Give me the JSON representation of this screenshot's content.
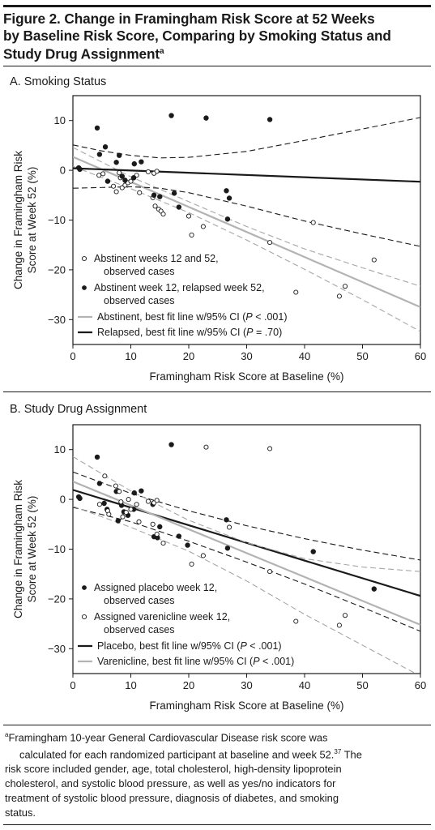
{
  "figure": {
    "title_lines": [
      "Figure 2. Change in Framingham Risk Score at 52 Weeks",
      "by Baseline Risk Score, Comparing by Smoking Status and",
      "Study Drug Assignment"
    ],
    "title_sup": "a"
  },
  "footnote": {
    "marker": "a",
    "lines": [
      "Framingham 10-year General Cardiovascular Disease risk score was",
      "calculated for each randomized participant at baseline and week 52.",
      "risk score included gender, age, total cholesterol, high-density lipoprotein",
      "cholesterol, and systolic blood pressure, as well as yes/no indicators for",
      "treatment of systolic blood pressure, diagnosis of diabetes, and smoking",
      "status."
    ],
    "ref_sup": "37",
    "line2_tail": " The"
  },
  "colors": {
    "black": "#1a1a1a",
    "gray": "#b3b3b3",
    "dash_gray": "#a6a6a6"
  },
  "chart_data": [
    {
      "type": "scatter",
      "panel_title": "A. Smoking Status",
      "xlabel": "Framingham Risk Score at Baseline (%)",
      "ylabel_lines": [
        "Change in Framingham Risk",
        "Score at Week 52 (%)"
      ],
      "xlim": [
        0,
        60
      ],
      "ylim": [
        -35,
        15
      ],
      "xticks": [
        0,
        10,
        20,
        30,
        40,
        50,
        60
      ],
      "yticks": [
        -30,
        -20,
        -10,
        0,
        10
      ],
      "ytick_labels": [
        "−30",
        "−20",
        "−10",
        "0",
        "10"
      ],
      "series": [
        {
          "name": "Abstinent weeks 12 and 52, observed cases",
          "marker": "open",
          "points": [
            [
              4.5,
              -1
            ],
            [
              5.2,
              -0.7
            ],
            [
              6,
              -2.2
            ],
            [
              7,
              -3.2
            ],
            [
              7.5,
              -4.3
            ],
            [
              8,
              -0.5
            ],
            [
              8.2,
              -1.5
            ],
            [
              8.5,
              -3.5
            ],
            [
              9,
              -3
            ],
            [
              9.5,
              -2.5
            ],
            [
              10,
              -2.2
            ],
            [
              10.5,
              -1.5
            ],
            [
              11,
              -1
            ],
            [
              11.5,
              -4.5
            ],
            [
              13,
              -0.3
            ],
            [
              14,
              -0.6
            ],
            [
              14.5,
              -0.2
            ],
            [
              13.8,
              -5.5
            ],
            [
              14.2,
              -7.2
            ],
            [
              14.8,
              -7.8
            ],
            [
              15.2,
              -8.2
            ],
            [
              15.6,
              -8.8
            ],
            [
              20,
              -9.2
            ],
            [
              20.5,
              -13
            ],
            [
              22.5,
              -11.3
            ],
            [
              34,
              -14.5
            ],
            [
              38.5,
              -24.5
            ],
            [
              41.5,
              -10.5
            ],
            [
              46,
              -25.3
            ],
            [
              47,
              -23.3
            ],
            [
              52,
              -18
            ]
          ]
        },
        {
          "name": "Abstinent week 12, relapsed week 52, observed cases",
          "marker": "filled",
          "points": [
            [
              1,
              0.5
            ],
            [
              1.2,
              0.2
            ],
            [
              4.2,
              8.5
            ],
            [
              4.6,
              3.2
            ],
            [
              5.6,
              4.7
            ],
            [
              6,
              -2.2
            ],
            [
              7.5,
              1.6
            ],
            [
              8,
              3
            ],
            [
              8.5,
              -1.2
            ],
            [
              9,
              -2
            ],
            [
              10.5,
              -1.5
            ],
            [
              10.6,
              1.3
            ],
            [
              11.8,
              1.7
            ],
            [
              14,
              -5
            ],
            [
              15,
              -5.3
            ],
            [
              17,
              11
            ],
            [
              17.5,
              -4.6
            ],
            [
              18.3,
              -7.4
            ],
            [
              23,
              10.5
            ],
            [
              26.5,
              -4.1
            ],
            [
              26.7,
              -9.8
            ],
            [
              27,
              -5.6
            ],
            [
              34,
              10.2
            ]
          ]
        }
      ],
      "fit_lines": [
        {
          "name": "Abstinent, best fit line w/95% CI",
          "p_label": "P",
          "p_value": "< .001",
          "color": "gray",
          "fit": [
            [
              0,
              2.7
            ],
            [
              60,
              -27.5
            ]
          ],
          "ci_upper": [
            [
              0,
              4.6
            ],
            [
              10,
              -1.3
            ],
            [
              20,
              -6.3
            ],
            [
              30,
              -11.3
            ],
            [
              40,
              -15.8
            ],
            [
              50,
              -19.6
            ],
            [
              60,
              -23.3
            ]
          ],
          "ci_lower": [
            [
              0,
              0.8
            ],
            [
              10,
              -3.7
            ],
            [
              20,
              -8.5
            ],
            [
              30,
              -14.0
            ],
            [
              40,
              -19.9
            ],
            [
              50,
              -26.0
            ],
            [
              60,
              -32.4
            ]
          ]
        },
        {
          "name": "Relapsed, best fit line w/95% CI",
          "p_label": "P",
          "p_value": "= .70",
          "color": "black",
          "fit": [
            [
              0,
              0.4
            ],
            [
              60,
              -2.3
            ]
          ],
          "ci_upper": [
            [
              0,
              5.1
            ],
            [
              5,
              3.9
            ],
            [
              10,
              3
            ],
            [
              15,
              2.5
            ],
            [
              20,
              2.6
            ],
            [
              30,
              3.8
            ],
            [
              40,
              6
            ],
            [
              50,
              8.3
            ],
            [
              60,
              10.6
            ]
          ],
          "ci_lower": [
            [
              0,
              -3.6
            ],
            [
              10,
              -3.3
            ],
            [
              15,
              -3.6
            ],
            [
              20,
              -4.5
            ],
            [
              30,
              -7.2
            ],
            [
              40,
              -10.2
            ],
            [
              50,
              -12.8
            ],
            [
              60,
              -15.3
            ]
          ]
        }
      ],
      "legend_placement": "bottom-left"
    },
    {
      "type": "scatter",
      "panel_title": "B. Study Drug Assignment",
      "xlabel": "Framingham Risk Score at Baseline (%)",
      "ylabel_lines": [
        "Change in Framingham Risk",
        "Score at Week 52 (%)"
      ],
      "xlim": [
        0,
        60
      ],
      "ylim": [
        -35,
        15
      ],
      "xticks": [
        0,
        10,
        20,
        30,
        40,
        50,
        60
      ],
      "yticks": [
        -30,
        -20,
        -10,
        0,
        10
      ],
      "ytick_labels": [
        "−30",
        "−20",
        "−10",
        "0",
        "10"
      ],
      "series": [
        {
          "name": "Assigned placebo week 12, observed cases",
          "marker": "filled",
          "points": [
            [
              1,
              0.5
            ],
            [
              1.2,
              0.2
            ],
            [
              4.2,
              8.5
            ],
            [
              4.6,
              3.2
            ],
            [
              5.4,
              -0.8
            ],
            [
              5.9,
              -2
            ],
            [
              7.5,
              1.6
            ],
            [
              7.8,
              -4.3
            ],
            [
              8.4,
              -1.2
            ],
            [
              8.8,
              -2.5
            ],
            [
              9.5,
              -3.2
            ],
            [
              10.5,
              -2
            ],
            [
              10.6,
              1.3
            ],
            [
              11.8,
              1.7
            ],
            [
              13.8,
              -1
            ],
            [
              14,
              -7.5
            ],
            [
              14.6,
              -7.7
            ],
            [
              15,
              -5.5
            ],
            [
              17,
              11
            ],
            [
              18.3,
              -7.4
            ],
            [
              19.8,
              -9.2
            ],
            [
              26.5,
              -4.1
            ],
            [
              26.7,
              -9.8
            ],
            [
              41.5,
              -10.5
            ],
            [
              52,
              -18
            ]
          ]
        },
        {
          "name": "Assigned varenicline week 12, observed cases",
          "marker": "open",
          "points": [
            [
              4.6,
              -1
            ],
            [
              5.5,
              4.7
            ],
            [
              6,
              -2.3
            ],
            [
              6.2,
              -3
            ],
            [
              7.4,
              2.7
            ],
            [
              8,
              1.6
            ],
            [
              8.3,
              -0.5
            ],
            [
              8.6,
              -3.5
            ],
            [
              9.2,
              -2.6
            ],
            [
              9.6,
              0
            ],
            [
              10,
              -2
            ],
            [
              11,
              -1
            ],
            [
              11.4,
              -4.5
            ],
            [
              13,
              -0.4
            ],
            [
              14,
              -0.7
            ],
            [
              14.5,
              -0.2
            ],
            [
              13.8,
              -5
            ],
            [
              14.5,
              -7
            ],
            [
              15.6,
              -8.8
            ],
            [
              20.5,
              -13
            ],
            [
              22.5,
              -11.3
            ],
            [
              23,
              10.5
            ],
            [
              27,
              -5.6
            ],
            [
              34,
              10.2
            ],
            [
              34,
              -14.5
            ],
            [
              38.5,
              -24.5
            ],
            [
              46,
              -25.3
            ],
            [
              47,
              -23.3
            ]
          ]
        }
      ],
      "fit_lines": [
        {
          "name": "Placebo, best fit line w/95% CI",
          "p_label": "P",
          "p_value": "< .001",
          "color": "black",
          "fit": [
            [
              0,
              1.9
            ],
            [
              60,
              -19.4
            ]
          ],
          "ci_upper": [
            [
              0,
              5.5
            ],
            [
              10,
              1.2
            ],
            [
              20,
              -2.3
            ],
            [
              30,
              -5.3
            ],
            [
              40,
              -7.9
            ],
            [
              50,
              -10.2
            ],
            [
              60,
              -12.2
            ]
          ],
          "ci_lower": [
            [
              0,
              -1.6
            ],
            [
              10,
              -4.5
            ],
            [
              20,
              -8.4
            ],
            [
              30,
              -12.6
            ],
            [
              40,
              -17.0
            ],
            [
              50,
              -21.7
            ],
            [
              60,
              -26.5
            ]
          ]
        },
        {
          "name": "Varenicline, best fit line w/95% CI",
          "p_label": "P",
          "p_value": "< .001",
          "color": "gray",
          "fit": [
            [
              0,
              3.6
            ],
            [
              60,
              -25.2
            ]
          ],
          "ci_upper": [
            [
              0,
              8.6
            ],
            [
              10,
              1.7
            ],
            [
              20,
              -4.2
            ],
            [
              30,
              -8.7
            ],
            [
              40,
              -11.9
            ],
            [
              50,
              -13.6
            ],
            [
              60,
              -14.5
            ]
          ],
          "ci_lower": [
            [
              0,
              -1.4
            ],
            [
              10,
              -5.6
            ],
            [
              20,
              -10.4
            ],
            [
              30,
              -16.4
            ],
            [
              40,
              -23.1
            ],
            [
              50,
              -29.3
            ],
            [
              60,
              -35.5
            ]
          ]
        }
      ],
      "legend_placement": "bottom-left"
    }
  ]
}
